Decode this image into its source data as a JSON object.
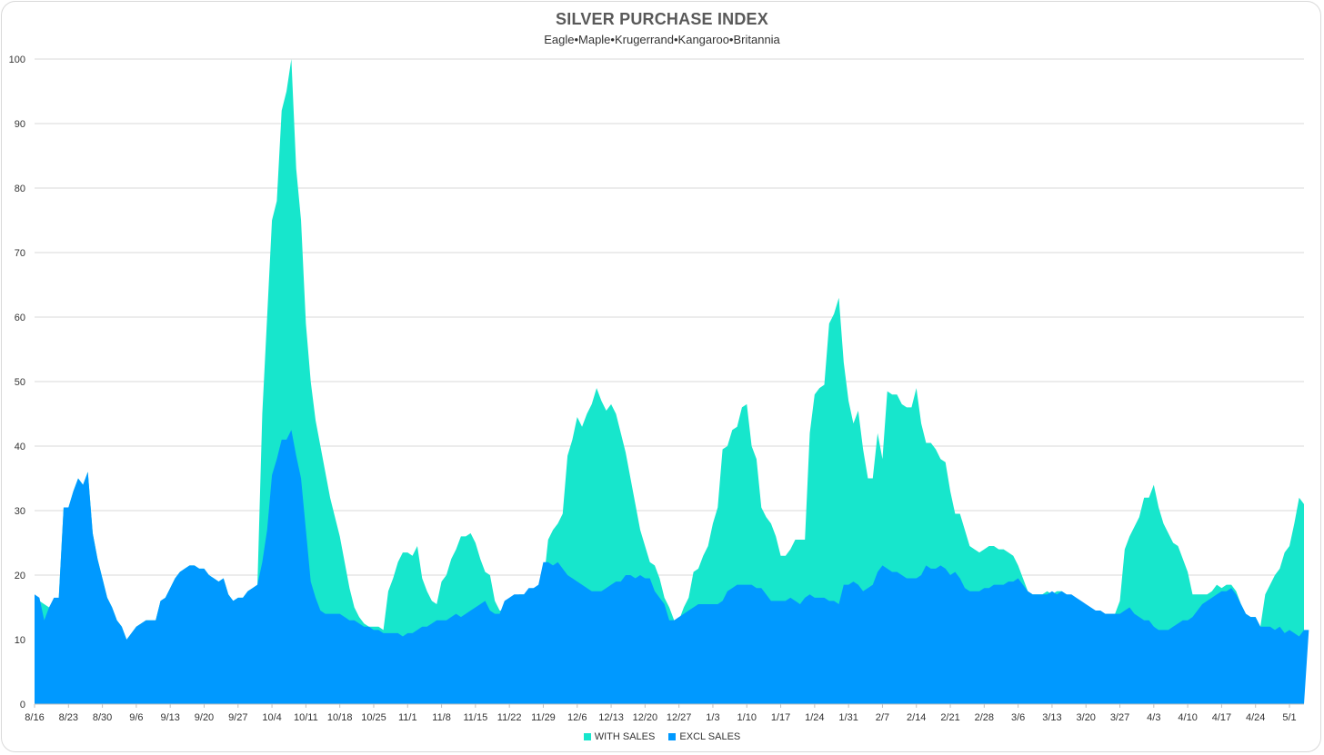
{
  "chart_data": {
    "type": "area",
    "title": "SILVER PURCHASE INDEX",
    "subtitle": "Eagle•Maple•Krugerrand•Kangaroo•Britannia",
    "xlabel": "",
    "ylabel": "",
    "ylim": [
      0,
      100
    ],
    "yticks": [
      0,
      10,
      20,
      30,
      40,
      50,
      60,
      70,
      80,
      90,
      100
    ],
    "grid": true,
    "legend": "bottom",
    "xticks": [
      "8/16",
      "8/23",
      "8/30",
      "9/6",
      "9/13",
      "9/20",
      "9/27",
      "10/4",
      "10/11",
      "10/18",
      "10/25",
      "11/1",
      "11/8",
      "11/15",
      "11/22",
      "11/29",
      "12/6",
      "12/13",
      "12/20",
      "12/27",
      "1/3",
      "1/10",
      "1/17",
      "1/24",
      "1/31",
      "2/7",
      "2/14",
      "2/21",
      "2/28",
      "3/6",
      "3/13",
      "3/20",
      "3/27",
      "4/3",
      "4/10",
      "4/17",
      "4/24",
      "5/1"
    ],
    "x_start": "8/16",
    "x_step": "1 day",
    "series": [
      {
        "name": "WITH SALES",
        "color": "#17e6cc",
        "values": [
          17,
          16,
          15.5,
          15,
          16,
          16.5,
          30.5,
          30.5,
          33,
          35,
          34,
          36,
          26.5,
          22.5,
          19.5,
          16.5,
          15,
          13,
          12,
          10,
          11,
          12,
          12.5,
          13,
          13,
          13,
          16,
          16.5,
          18,
          19.5,
          20.5,
          21,
          21.5,
          21.5,
          21,
          21,
          20,
          19.5,
          19,
          19.5,
          17,
          16,
          16.5,
          16.5,
          17.5,
          18,
          18.5,
          45,
          60,
          75,
          78,
          92,
          95,
          100,
          83,
          75,
          59,
          50,
          44,
          40,
          36,
          32,
          29,
          26,
          22,
          18,
          15,
          13.5,
          12.5,
          12,
          12,
          12,
          11.5,
          17.5,
          19.5,
          22,
          23.5,
          23.5,
          23,
          24.5,
          19.5,
          17.5,
          16,
          15.5,
          19,
          20,
          22.5,
          24,
          26,
          26,
          26.5,
          25,
          22.5,
          20.5,
          20,
          16,
          14.5,
          14.5,
          16,
          16.5,
          17,
          17,
          17,
          18,
          18,
          18.5,
          25.5,
          27,
          28,
          29.5,
          38.5,
          41,
          44.5,
          43,
          45,
          46.5,
          49,
          47,
          45.5,
          46.5,
          45,
          42,
          39,
          35,
          31,
          27,
          24.5,
          22,
          21.5,
          19.5,
          16.5,
          15,
          13,
          13,
          15,
          16.5,
          20.5,
          21,
          23,
          24.5,
          28,
          30.5,
          39.5,
          40,
          42.5,
          43,
          46,
          46.5,
          40,
          38,
          30.5,
          29,
          28,
          26,
          23,
          23,
          24,
          25.5,
          25.5,
          25.5,
          42,
          48,
          49,
          49.5,
          59,
          60.5,
          63,
          53,
          47,
          43.5,
          45.5,
          39.5,
          35,
          35,
          42,
          38,
          48.5,
          48,
          48,
          46.5,
          46,
          46,
          49,
          43.5,
          40.5,
          40.5,
          39.5,
          38,
          37.5,
          33,
          29.5,
          29.5,
          27,
          24.5,
          24,
          23.5,
          24,
          24.5,
          24.5,
          24,
          24,
          23.5,
          23,
          21.5,
          19.5,
          17.5,
          17,
          17,
          17,
          17.5,
          17,
          17.5,
          17.5,
          17,
          16.5,
          16,
          15.5,
          15,
          14.5,
          14.5,
          14,
          14,
          14,
          14,
          16,
          24,
          26,
          27.5,
          29,
          32,
          32,
          34,
          30.5,
          28,
          26.5,
          25,
          24.5,
          22.5,
          20.5,
          17,
          17,
          17,
          17,
          17.5,
          18.5,
          18,
          18.5,
          18.5,
          17.5,
          15.5,
          14,
          13.5,
          13.5,
          12,
          17,
          18.5,
          20,
          21,
          23.5,
          24.5,
          28,
          32,
          31
        ]
      },
      {
        "name": "EXCL SALES",
        "color": "#0099ff",
        "values": [
          17,
          16.5,
          13,
          15,
          16.5,
          16.5,
          30.5,
          30.5,
          33,
          35,
          34,
          36,
          26.5,
          22.5,
          19.5,
          16.5,
          15,
          13,
          12,
          10,
          11,
          12,
          12.5,
          13,
          13,
          13,
          16,
          16.5,
          18,
          19.5,
          20.5,
          21,
          21.5,
          21.5,
          21,
          21,
          20,
          19.5,
          19,
          19.5,
          17,
          16,
          16.5,
          16.5,
          17.5,
          18,
          18.5,
          22,
          27,
          35.5,
          38,
          41,
          41,
          42.5,
          38.5,
          35,
          27,
          19,
          16.5,
          14.5,
          14,
          14,
          14,
          14,
          13.5,
          13,
          13,
          12.5,
          12,
          12,
          11.5,
          11.5,
          11,
          11,
          11,
          11,
          10.5,
          11,
          11,
          11.5,
          12,
          12,
          12.5,
          13,
          13,
          13,
          13.5,
          14,
          13.5,
          14,
          14.5,
          15,
          15.5,
          16,
          14.5,
          14,
          14,
          16,
          16.5,
          17,
          17,
          17,
          18,
          18,
          18.5,
          22,
          22,
          21.5,
          22,
          21,
          20,
          19.5,
          19,
          18.5,
          18,
          17.5,
          17.5,
          17.5,
          18,
          18.5,
          19,
          19,
          20,
          20,
          19.5,
          20,
          19.5,
          19.5,
          17.5,
          16.5,
          15.5,
          13,
          13,
          13.5,
          14,
          14.5,
          15,
          15.5,
          15.5,
          15.5,
          15.5,
          15.5,
          16,
          17.5,
          18,
          18.5,
          18.5,
          18.5,
          18.5,
          18,
          18,
          17,
          16,
          16,
          16,
          16,
          16.5,
          16,
          15.5,
          16.5,
          17,
          16.5,
          16.5,
          16.5,
          16,
          16,
          15.5,
          18.5,
          18.5,
          19,
          18.5,
          17.5,
          18,
          18.5,
          20.5,
          21.5,
          21,
          20.5,
          20.5,
          20,
          19.5,
          19.5,
          19.5,
          20,
          21.5,
          21,
          21,
          21.5,
          21,
          20,
          20.5,
          19.5,
          18,
          17.5,
          17.5,
          17.5,
          18,
          18,
          18.5,
          18.5,
          18.5,
          19,
          19,
          19.5,
          18.5,
          17.5,
          17,
          17,
          17,
          17,
          17.5,
          17,
          17.5,
          17,
          17,
          16.5,
          16,
          15.5,
          15,
          14.5,
          14.5,
          14,
          14,
          14,
          14,
          14.5,
          15,
          14,
          13.5,
          13,
          13,
          12,
          11.5,
          11.5,
          11.5,
          12,
          12.5,
          13,
          13,
          13.5,
          14.5,
          15.5,
          16,
          16.5,
          17,
          17.5,
          17.5,
          18,
          17,
          15.5,
          14,
          13.5,
          13.5,
          12,
          12,
          12,
          11.5,
          12,
          11,
          11.5,
          11,
          10.5,
          11.5,
          11.5
        ]
      }
    ]
  }
}
